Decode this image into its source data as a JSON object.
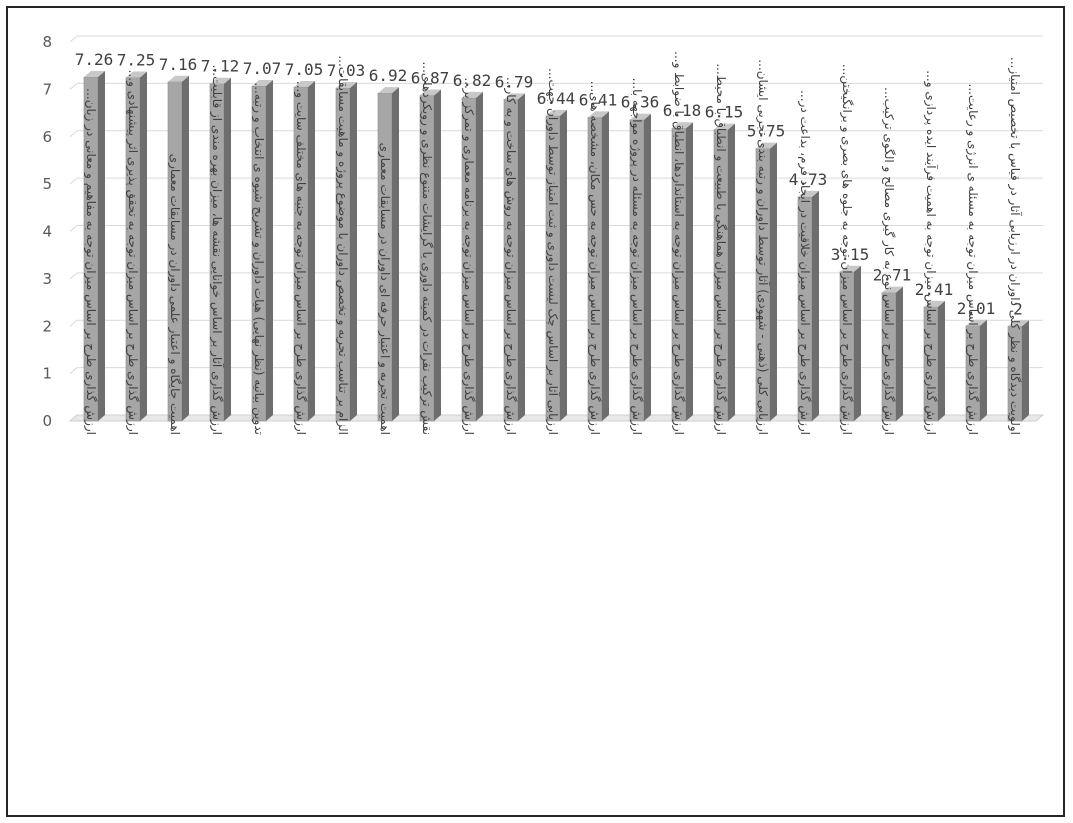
{
  "chart_data": {
    "type": "bar",
    "style": "3d-column",
    "bar_color": "#a6a6a6",
    "bar_side_color": "#6e6e6e",
    "bar_top_color": "#c8c8c8",
    "gridline_color": "#d9d9d9",
    "grid": true,
    "legend": "none",
    "ylim": [
      0,
      8
    ],
    "yticks": [
      "0",
      "1",
      "2",
      "3",
      "4",
      "5",
      "6",
      "7",
      "8"
    ],
    "categories": [
      "ارزش گذاری طرح بر اساس میزان توجه به مفاهیم و معانی در زبان...",
      "ارزش گذاری طرح بر اساس میزان توجه به تحقق پذیری اثر پیشنهادی و...",
      "اهمیت جایگاه و اعتبار علمی داوران در مسابقات معماری",
      "ارزش گذاری آثار بر اساس خوانایی نقشه ها، میزان بهره مندی از قابلیت...",
      "تدوین بیانیه (نظر نهایی) هیات داوران و تشریح شیوه ی انتخاب و رتبه...",
      "ارزش گذاری طرح بر اساس میزان توجه به جنبه های مختلف سایت و...",
      "الزام بر تناسب تجربه و تخصص داوران با موضوع پروژه و ماهیت مسابقات...",
      "اهمیت تجربه و اعتبار حرفه ای داوران در مسابقات معماری",
      "نقش ترکیب نفرات در کمیته داوری با گرایشات متنوع نظری و رویکردهای...",
      "ارزش گذاری طرح بر اساس میزان توجه به برنامه معماری و تمرکز بر...",
      "ارزش گذاری طرح بر اساس میزان توجه به روش های ساخت و به کار...",
      "ارزیابی آثار بر اساس چک لیست داوری و ثبت امتیاز توسط داوران جهت...",
      "ارزش گذاری طرح بر اساس میزان توجه به حس مکان، مشخصه های...",
      "ارزش گذاری طرح بر اساس میزان توجه به مسئله در پروژه مواجهه با...",
      "ارزش گذاری طرح بر اساس میزان توجه به استانداردها، انطباق با ضوابط و...",
      "ارزش گذاری طرح بر اساس میزان هماهنگی با طبیعت و انطباق با محیط...",
      "ارزیابی کلی (ذهنی - شهودی) آثار توسط داوران و رتبه بندی تجربی ایشان...",
      "ارزش گذاری طرح بر اساس میزان خلاقیت در ایجاد فرم، بداعت در...",
      "ارزش گذاری طرح بر اساس میزان توجه به جلوه های بصری و برانگیختن...",
      "ارزش گذاری طرح بر اساس نوع به کار گیری مصالح و الگوی ترکیب...",
      "ارزش گذاری طرح بر اساس میزان توجه به اهمیت فرآیند ایده پردازی و...",
      "ارزش گذاری طرح بر اساس میزان توجه به مسئله ی انرژی و رعایت...",
      "اولویت دیدگاه و نظر کلی داوران در ارزیابی آثار در قیاس با تخصیص امتیاز..."
    ],
    "values": [
      7.26,
      7.25,
      7.16,
      7.12,
      7.07,
      7.05,
      7.03,
      6.92,
      6.87,
      6.82,
      6.79,
      6.44,
      6.41,
      6.36,
      6.18,
      6.15,
      5.75,
      4.73,
      3.15,
      2.71,
      2.41,
      2.01,
      2
    ],
    "data_labels": [
      "7.26",
      "7.25",
      "7.16",
      "7.12",
      "7.07",
      "7.05",
      "7.03",
      "6.92",
      "6.87",
      "6.82",
      "6.79",
      "6.44",
      "6.41",
      "6.36",
      "6.18",
      "6.15",
      "5.75",
      "4.73",
      "3.15",
      "2.71",
      "2.41",
      "2.01",
      "2"
    ],
    "title": "",
    "xlabel": "",
    "ylabel": ""
  }
}
